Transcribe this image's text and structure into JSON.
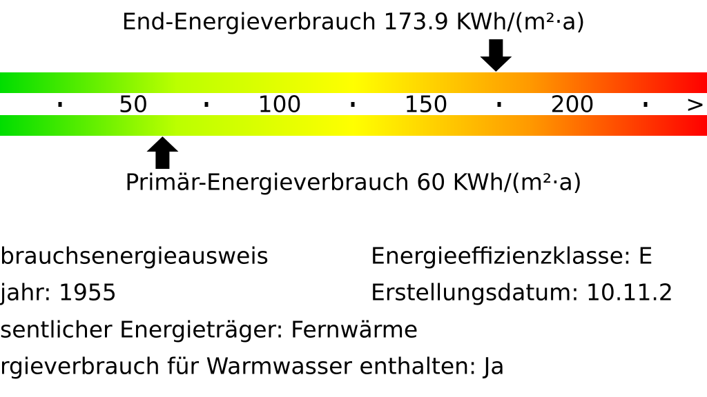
{
  "chart_data": {
    "type": "scale",
    "xlim": [
      0,
      250
    ],
    "xticks": [
      50,
      100,
      150,
      200,
      {
        "value": 242,
        "label": ">"
      }
    ],
    "xminor": [
      25,
      75,
      125,
      175,
      225
    ],
    "gradient": [
      "#00dd00",
      "#bbff00",
      "#ffff00",
      "#ff9900",
      "#ff0000"
    ],
    "markers": [
      {
        "label": "End-Energieverbrauch 173.9 KWh/(m²·a)",
        "value": 173.9,
        "side": "top"
      },
      {
        "label": "Primär-Energieverbrauch 60 KWh/(m²·a)",
        "value": 60,
        "side": "bottom"
      }
    ]
  },
  "info": {
    "left": [
      "brauchsenergieausweis",
      "jahr: 1955",
      "sentlicher Energieträger: Fernwärme",
      "rgieverbrauch für Warmwasser enthalten: Ja"
    ],
    "right": [
      "Energieeffizienzklasse: E",
      "Erstellungsdatum: 10.11.2"
    ]
  }
}
